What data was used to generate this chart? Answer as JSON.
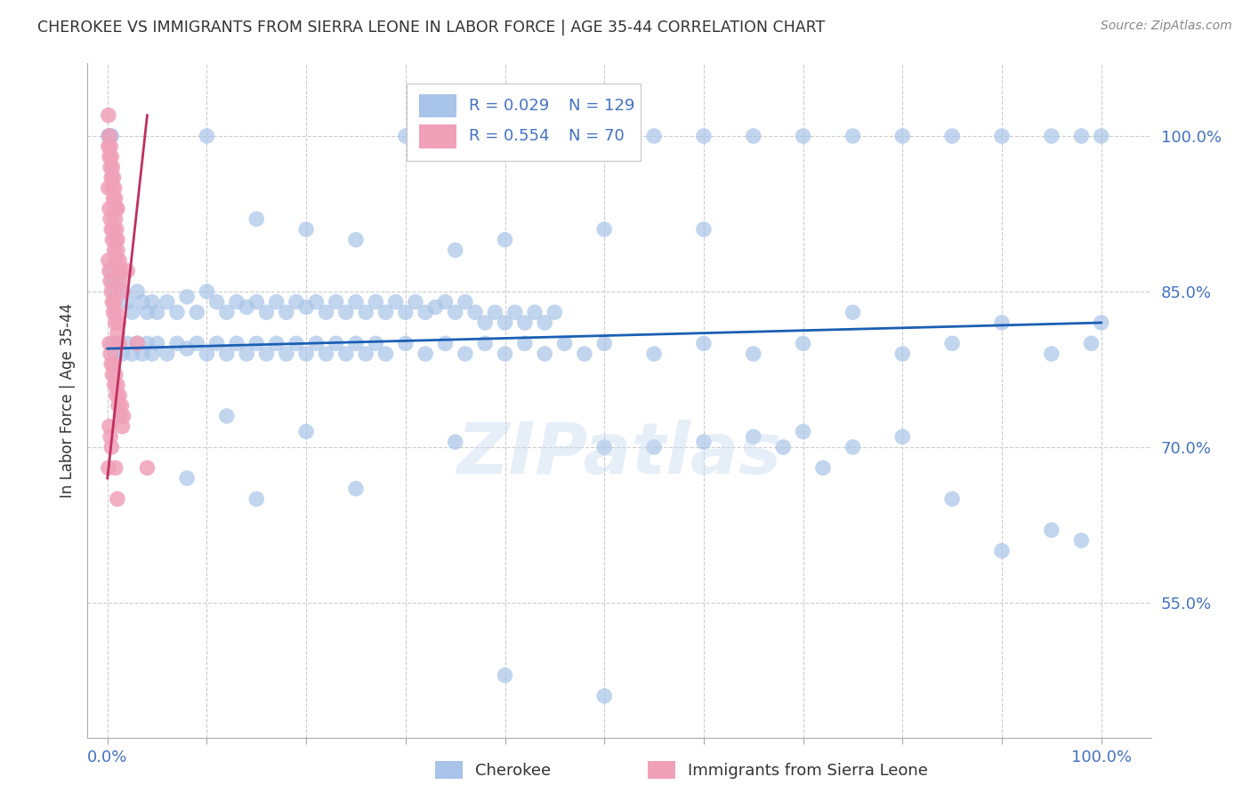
{
  "title": "CHEROKEE VS IMMIGRANTS FROM SIERRA LEONE IN LABOR FORCE | AGE 35-44 CORRELATION CHART",
  "source": "Source: ZipAtlas.com",
  "ylabel": "In Labor Force | Age 35-44",
  "yticks": [
    55.0,
    70.0,
    85.0,
    100.0
  ],
  "ytick_labels": [
    "55.0%",
    "70.0%",
    "85.0%",
    "100.0%"
  ],
  "xlim": [
    -0.02,
    1.05
  ],
  "ylim": [
    42.0,
    107.0
  ],
  "legend_blue_r": "0.029",
  "legend_blue_n": "129",
  "legend_pink_r": "0.554",
  "legend_pink_n": "70",
  "blue_color": "#a8c4e8",
  "pink_color": "#f0a0b8",
  "trendline_blue_color": "#1a5fb4",
  "trendline_pink_color": "#c03060",
  "watermark": "ZIPatlas",
  "blue_scatter": [
    [
      0.001,
      100.0
    ],
    [
      0.002,
      100.0
    ],
    [
      0.003,
      100.0
    ],
    [
      0.004,
      100.0
    ],
    [
      0.1,
      100.0
    ],
    [
      0.3,
      100.0
    ],
    [
      0.45,
      100.0
    ],
    [
      0.5,
      100.0
    ],
    [
      0.55,
      100.0
    ],
    [
      0.6,
      100.0
    ],
    [
      0.65,
      100.0
    ],
    [
      0.7,
      100.0
    ],
    [
      0.75,
      100.0
    ],
    [
      0.8,
      100.0
    ],
    [
      0.85,
      100.0
    ],
    [
      0.9,
      100.0
    ],
    [
      0.95,
      100.0
    ],
    [
      0.98,
      100.0
    ],
    [
      1.0,
      100.0
    ],
    [
      0.15,
      92.0
    ],
    [
      0.2,
      91.0
    ],
    [
      0.25,
      90.0
    ],
    [
      0.35,
      89.0
    ],
    [
      0.4,
      90.0
    ],
    [
      0.5,
      91.0
    ],
    [
      0.6,
      91.0
    ],
    [
      0.003,
      87.0
    ],
    [
      0.005,
      86.0
    ],
    [
      0.007,
      85.0
    ],
    [
      0.01,
      86.0
    ],
    [
      0.015,
      85.0
    ],
    [
      0.02,
      84.0
    ],
    [
      0.025,
      83.0
    ],
    [
      0.03,
      85.0
    ],
    [
      0.035,
      84.0
    ],
    [
      0.04,
      83.0
    ],
    [
      0.045,
      84.0
    ],
    [
      0.05,
      83.0
    ],
    [
      0.06,
      84.0
    ],
    [
      0.07,
      83.0
    ],
    [
      0.08,
      84.5
    ],
    [
      0.09,
      83.0
    ],
    [
      0.1,
      85.0
    ],
    [
      0.11,
      84.0
    ],
    [
      0.12,
      83.0
    ],
    [
      0.13,
      84.0
    ],
    [
      0.14,
      83.5
    ],
    [
      0.15,
      84.0
    ],
    [
      0.16,
      83.0
    ],
    [
      0.17,
      84.0
    ],
    [
      0.18,
      83.0
    ],
    [
      0.19,
      84.0
    ],
    [
      0.2,
      83.5
    ],
    [
      0.21,
      84.0
    ],
    [
      0.22,
      83.0
    ],
    [
      0.23,
      84.0
    ],
    [
      0.24,
      83.0
    ],
    [
      0.25,
      84.0
    ],
    [
      0.26,
      83.0
    ],
    [
      0.27,
      84.0
    ],
    [
      0.28,
      83.0
    ],
    [
      0.29,
      84.0
    ],
    [
      0.3,
      83.0
    ],
    [
      0.31,
      84.0
    ],
    [
      0.32,
      83.0
    ],
    [
      0.33,
      83.5
    ],
    [
      0.34,
      84.0
    ],
    [
      0.35,
      83.0
    ],
    [
      0.36,
      84.0
    ],
    [
      0.37,
      83.0
    ],
    [
      0.38,
      82.0
    ],
    [
      0.39,
      83.0
    ],
    [
      0.4,
      82.0
    ],
    [
      0.41,
      83.0
    ],
    [
      0.42,
      82.0
    ],
    [
      0.43,
      83.0
    ],
    [
      0.44,
      82.0
    ],
    [
      0.45,
      83.0
    ],
    [
      0.005,
      80.0
    ],
    [
      0.008,
      79.0
    ],
    [
      0.01,
      80.0
    ],
    [
      0.015,
      79.0
    ],
    [
      0.02,
      80.0
    ],
    [
      0.025,
      79.0
    ],
    [
      0.03,
      80.0
    ],
    [
      0.035,
      79.0
    ],
    [
      0.04,
      80.0
    ],
    [
      0.045,
      79.0
    ],
    [
      0.05,
      80.0
    ],
    [
      0.06,
      79.0
    ],
    [
      0.07,
      80.0
    ],
    [
      0.08,
      79.5
    ],
    [
      0.09,
      80.0
    ],
    [
      0.1,
      79.0
    ],
    [
      0.11,
      80.0
    ],
    [
      0.12,
      79.0
    ],
    [
      0.13,
      80.0
    ],
    [
      0.14,
      79.0
    ],
    [
      0.15,
      80.0
    ],
    [
      0.16,
      79.0
    ],
    [
      0.17,
      80.0
    ],
    [
      0.18,
      79.0
    ],
    [
      0.19,
      80.0
    ],
    [
      0.2,
      79.0
    ],
    [
      0.21,
      80.0
    ],
    [
      0.22,
      79.0
    ],
    [
      0.23,
      80.0
    ],
    [
      0.24,
      79.0
    ],
    [
      0.25,
      80.0
    ],
    [
      0.26,
      79.0
    ],
    [
      0.27,
      80.0
    ],
    [
      0.28,
      79.0
    ],
    [
      0.3,
      80.0
    ],
    [
      0.32,
      79.0
    ],
    [
      0.34,
      80.0
    ],
    [
      0.36,
      79.0
    ],
    [
      0.38,
      80.0
    ],
    [
      0.4,
      79.0
    ],
    [
      0.42,
      80.0
    ],
    [
      0.44,
      79.0
    ],
    [
      0.46,
      80.0
    ],
    [
      0.48,
      79.0
    ],
    [
      0.5,
      80.0
    ],
    [
      0.55,
      79.0
    ],
    [
      0.6,
      80.0
    ],
    [
      0.65,
      79.0
    ],
    [
      0.7,
      80.0
    ],
    [
      0.75,
      83.0
    ],
    [
      0.8,
      79.0
    ],
    [
      0.85,
      80.0
    ],
    [
      0.9,
      82.0
    ],
    [
      0.95,
      79.0
    ],
    [
      0.99,
      80.0
    ],
    [
      1.0,
      82.0
    ],
    [
      0.12,
      73.0
    ],
    [
      0.2,
      71.5
    ],
    [
      0.35,
      70.5
    ],
    [
      0.5,
      70.0
    ],
    [
      0.55,
      70.0
    ],
    [
      0.6,
      70.5
    ],
    [
      0.65,
      71.0
    ],
    [
      0.68,
      70.0
    ],
    [
      0.7,
      71.5
    ],
    [
      0.72,
      68.0
    ],
    [
      0.75,
      70.0
    ],
    [
      0.8,
      71.0
    ],
    [
      0.85,
      65.0
    ],
    [
      0.9,
      60.0
    ],
    [
      0.95,
      62.0
    ],
    [
      0.98,
      61.0
    ],
    [
      0.08,
      67.0
    ],
    [
      0.15,
      65.0
    ],
    [
      0.25,
      66.0
    ],
    [
      0.4,
      48.0
    ],
    [
      0.5,
      46.0
    ]
  ],
  "pink_scatter": [
    [
      0.001,
      102.0
    ],
    [
      0.002,
      100.0
    ],
    [
      0.001,
      99.0
    ],
    [
      0.002,
      98.0
    ],
    [
      0.003,
      99.0
    ],
    [
      0.003,
      97.0
    ],
    [
      0.004,
      98.0
    ],
    [
      0.004,
      96.0
    ],
    [
      0.005,
      97.0
    ],
    [
      0.005,
      95.0
    ],
    [
      0.006,
      96.0
    ],
    [
      0.006,
      94.0
    ],
    [
      0.007,
      95.0
    ],
    [
      0.007,
      93.0
    ],
    [
      0.008,
      94.0
    ],
    [
      0.008,
      92.0
    ],
    [
      0.009,
      93.0
    ],
    [
      0.009,
      91.0
    ],
    [
      0.01,
      93.0
    ],
    [
      0.01,
      90.0
    ],
    [
      0.001,
      95.0
    ],
    [
      0.002,
      93.0
    ],
    [
      0.003,
      92.0
    ],
    [
      0.004,
      91.0
    ],
    [
      0.005,
      90.0
    ],
    [
      0.006,
      91.0
    ],
    [
      0.007,
      89.0
    ],
    [
      0.008,
      90.0
    ],
    [
      0.009,
      88.0
    ],
    [
      0.01,
      89.0
    ],
    [
      0.011,
      87.0
    ],
    [
      0.012,
      88.0
    ],
    [
      0.013,
      86.0
    ],
    [
      0.014,
      87.0
    ],
    [
      0.015,
      85.0
    ],
    [
      0.001,
      88.0
    ],
    [
      0.002,
      87.0
    ],
    [
      0.003,
      86.0
    ],
    [
      0.004,
      85.0
    ],
    [
      0.005,
      84.0
    ],
    [
      0.006,
      83.0
    ],
    [
      0.007,
      84.0
    ],
    [
      0.008,
      82.0
    ],
    [
      0.009,
      83.0
    ],
    [
      0.01,
      81.0
    ],
    [
      0.011,
      82.0
    ],
    [
      0.012,
      80.0
    ],
    [
      0.002,
      80.0
    ],
    [
      0.003,
      79.0
    ],
    [
      0.004,
      78.0
    ],
    [
      0.005,
      77.0
    ],
    [
      0.006,
      78.0
    ],
    [
      0.007,
      76.0
    ],
    [
      0.008,
      77.0
    ],
    [
      0.009,
      75.0
    ],
    [
      0.01,
      76.0
    ],
    [
      0.011,
      74.0
    ],
    [
      0.012,
      75.0
    ],
    [
      0.013,
      73.0
    ],
    [
      0.014,
      74.0
    ],
    [
      0.015,
      72.0
    ],
    [
      0.016,
      73.0
    ],
    [
      0.002,
      72.0
    ],
    [
      0.003,
      71.0
    ],
    [
      0.004,
      70.0
    ],
    [
      0.02,
      87.0
    ],
    [
      0.03,
      80.0
    ],
    [
      0.04,
      68.0
    ],
    [
      0.001,
      68.0
    ],
    [
      0.008,
      68.0
    ],
    [
      0.01,
      65.0
    ]
  ],
  "blue_trendline_y0": 79.5,
  "blue_trendline_y1": 82.0,
  "pink_trendline_x0": 0.0,
  "pink_trendline_x1": 0.04,
  "pink_trendline_y0": 67.0,
  "pink_trendline_y1": 102.0
}
